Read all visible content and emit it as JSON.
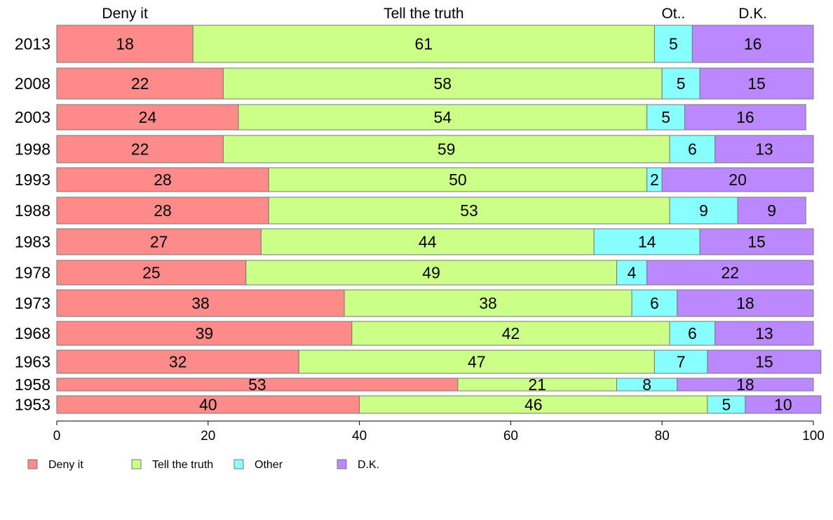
{
  "chart_data": {
    "type": "bar",
    "orientation": "horizontal",
    "stacked": true,
    "categories": [
      "2013",
      "2008",
      "2003",
      "1998",
      "1993",
      "1988",
      "1983",
      "1978",
      "1973",
      "1968",
      "1963",
      "1958",
      "1953"
    ],
    "series": [
      {
        "name": "Deny it",
        "color": "#ff8a8a",
        "values": [
          18,
          22,
          24,
          22,
          28,
          28,
          27,
          25,
          38,
          39,
          32,
          53,
          40
        ]
      },
      {
        "name": "Tell the truth",
        "color": "#ccff88",
        "values": [
          61,
          58,
          54,
          59,
          50,
          53,
          44,
          49,
          38,
          42,
          47,
          21,
          46
        ]
      },
      {
        "name": "Other",
        "color": "#88ffff",
        "values": [
          5,
          5,
          5,
          6,
          2,
          9,
          14,
          4,
          6,
          6,
          7,
          8,
          5
        ]
      },
      {
        "name": "D.K.",
        "color": "#bb88ff",
        "values": [
          16,
          15,
          16,
          13,
          20,
          9,
          15,
          22,
          18,
          13,
          15,
          18,
          10
        ]
      }
    ],
    "top_labels": [
      "Deny it",
      "Tell the truth",
      "Ot..",
      "D.K."
    ],
    "xlim": [
      0,
      100
    ],
    "xticks": [
      "0",
      "20",
      "40",
      "60",
      "80",
      "100"
    ],
    "legend_position": "bottom-left",
    "grid": false
  }
}
